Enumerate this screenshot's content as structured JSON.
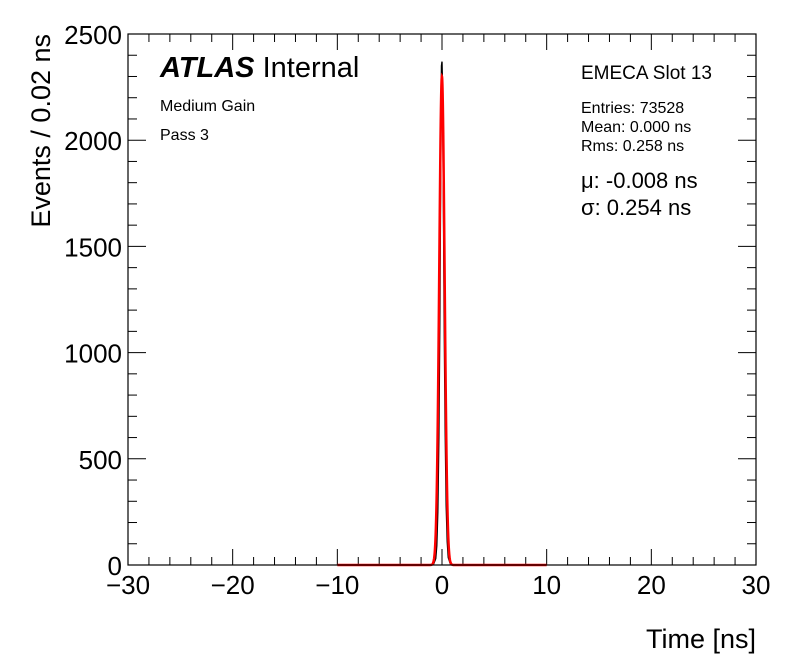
{
  "chart_data": {
    "type": "line",
    "title": "",
    "xlabel": "Time [ns]",
    "ylabel": "Events / 0.02 ns",
    "xlim": [
      -30,
      30
    ],
    "ylim": [
      0,
      2500
    ],
    "x_ticks": [
      "−30",
      "−20",
      "−10",
      "0",
      "10",
      "20",
      "30"
    ],
    "y_ticks": [
      "0",
      "500",
      "1000",
      "1500",
      "2000",
      "2500"
    ],
    "grid": false,
    "series": [
      {
        "type": "histogram",
        "color": "#000000",
        "x": [
          -1.0,
          -0.8,
          -0.6,
          -0.5,
          -0.4,
          -0.3,
          -0.2,
          -0.15,
          -0.1,
          -0.05,
          0.0,
          0.05,
          0.1,
          0.15,
          0.2,
          0.3,
          0.4,
          0.5,
          0.6,
          0.8,
          1.0
        ],
        "values": [
          0,
          5,
          30,
          90,
          250,
          600,
          1200,
          1650,
          2050,
          2350,
          2370,
          2250,
          1950,
          1600,
          1200,
          650,
          280,
          110,
          35,
          5,
          0
        ]
      },
      {
        "type": "gaussian-fit",
        "color": "#ff0000",
        "mean": -0.008,
        "sigma": 0.254,
        "amplitude": 2300,
        "range": [
          -10,
          10
        ]
      }
    ],
    "annotations": {
      "atlas_word": "ATLAS",
      "atlas_label": "Internal",
      "gain": "Medium Gain",
      "pass": "Pass 3",
      "slot": "EMECA Slot 13",
      "entries": "Entries: 73528",
      "mean": "Mean: 0.000 ns",
      "rms": "Rms: 0.258 ns",
      "fit_mu": "μ: -0.008 ns",
      "fit_sigma": "σ: 0.254 ns"
    }
  }
}
